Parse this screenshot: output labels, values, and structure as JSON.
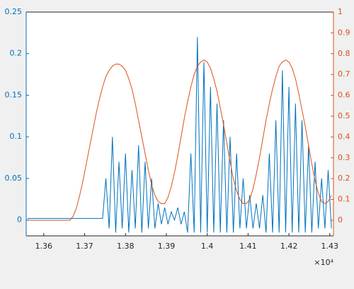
{
  "chart_data": {
    "type": "line",
    "x": [
      13560,
      13568,
      13576,
      13584,
      13592,
      13600,
      13608,
      13616,
      13624,
      13632,
      13640,
      13648,
      13656,
      13664,
      13672,
      13680,
      13688,
      13696,
      13704,
      13712,
      13720,
      13728,
      13736,
      13744,
      13752,
      13760,
      13768,
      13776,
      13784,
      13792,
      13800,
      13808,
      13816,
      13824,
      13832,
      13840,
      13848,
      13856,
      13864,
      13872,
      13880,
      13888,
      13896,
      13904,
      13912,
      13920,
      13928,
      13936,
      13944,
      13952,
      13960,
      13968,
      13976,
      13984,
      13992,
      14000,
      14008,
      14016,
      14024,
      14032,
      14040,
      14048,
      14056,
      14064,
      14072,
      14080,
      14088,
      14096,
      14104,
      14112,
      14120,
      14128,
      14136,
      14144,
      14152,
      14160,
      14168,
      14176,
      14184,
      14192,
      14200,
      14208,
      14216,
      14224,
      14232,
      14240,
      14248,
      14256,
      14264,
      14272,
      14280,
      14288,
      14296,
      14304
    ],
    "series": [
      {
        "color": "#0072BD",
        "axis": "y",
        "values": [
          0.002,
          0.002,
          0.002,
          0.002,
          0.002,
          0.002,
          0.002,
          0.002,
          0.002,
          0.002,
          0.002,
          0.002,
          0.002,
          0.002,
          0.002,
          0.002,
          0.002,
          0.002,
          0.002,
          0.002,
          0.002,
          0.002,
          0.002,
          0.002,
          0.05,
          -0.01,
          0.1,
          -0.015,
          0.07,
          -0.01,
          0.08,
          -0.015,
          0.06,
          -0.01,
          0.09,
          -0.015,
          0.07,
          -0.01,
          0.05,
          -0.01,
          0.02,
          -0.005,
          0.015,
          -0.005,
          0.01,
          0.0,
          0.015,
          -0.005,
          0.01,
          -0.015,
          0.08,
          -0.015,
          0.22,
          -0.015,
          0.19,
          -0.015,
          0.16,
          -0.015,
          0.14,
          -0.015,
          0.12,
          -0.015,
          0.1,
          -0.015,
          0.08,
          -0.01,
          0.05,
          -0.01,
          0.03,
          -0.01,
          0.02,
          -0.01,
          0.03,
          -0.015,
          0.08,
          -0.015,
          0.12,
          -0.015,
          0.18,
          -0.015,
          0.16,
          -0.015,
          0.14,
          -0.015,
          0.12,
          -0.015,
          0.09,
          -0.015,
          0.07,
          -0.01,
          0.05,
          -0.01,
          0.06,
          -0.01
        ]
      },
      {
        "color": "#D95319",
        "axis": "y2",
        "values": [
          0,
          0,
          0,
          0,
          0,
          0,
          0,
          0,
          0,
          0,
          0,
          0,
          0,
          0,
          0.02,
          0.06,
          0.12,
          0.19,
          0.27,
          0.35,
          0.43,
          0.51,
          0.58,
          0.64,
          0.69,
          0.72,
          0.74,
          0.75,
          0.75,
          0.74,
          0.72,
          0.68,
          0.63,
          0.56,
          0.48,
          0.4,
          0.32,
          0.24,
          0.17,
          0.12,
          0.09,
          0.08,
          0.08,
          0.11,
          0.16,
          0.23,
          0.31,
          0.4,
          0.49,
          0.57,
          0.64,
          0.7,
          0.74,
          0.76,
          0.77,
          0.76,
          0.73,
          0.68,
          0.62,
          0.54,
          0.46,
          0.37,
          0.28,
          0.2,
          0.14,
          0.1,
          0.08,
          0.08,
          0.1,
          0.15,
          0.22,
          0.3,
          0.39,
          0.48,
          0.56,
          0.63,
          0.69,
          0.74,
          0.76,
          0.77,
          0.76,
          0.73,
          0.68,
          0.61,
          0.53,
          0.45,
          0.36,
          0.27,
          0.19,
          0.13,
          0.09,
          0.08,
          0.09,
          0.12
        ]
      }
    ],
    "xlim": [
      13557,
      14309
    ],
    "xticks": [
      {
        "value": 13600,
        "label": "1.36"
      },
      {
        "value": 13700,
        "label": "1.37"
      },
      {
        "value": 13800,
        "label": "1.38"
      },
      {
        "value": 13900,
        "label": "1.39"
      },
      {
        "value": 14000,
        "label": "1.4"
      },
      {
        "value": 14100,
        "label": "1.41"
      },
      {
        "value": 14200,
        "label": "1.42"
      },
      {
        "value": 14300,
        "label": "1.43"
      }
    ],
    "x_exponent_label": "×10⁴",
    "ylim": [
      -0.019,
      0.25
    ],
    "yticks": [
      0,
      0.05,
      0.1,
      0.15,
      0.2,
      0.25
    ],
    "y2lim": [
      -0.075,
      1
    ],
    "y2ticks": [
      0,
      0.1,
      0.2,
      0.3,
      0.4,
      0.5,
      0.6,
      0.7,
      0.8,
      0.9,
      1
    ],
    "grid": false
  }
}
